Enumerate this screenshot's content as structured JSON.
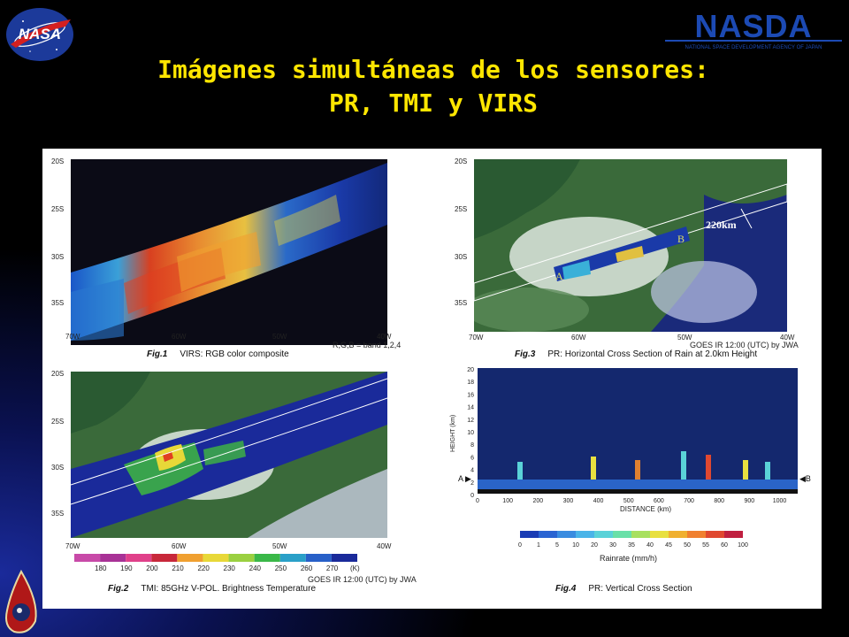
{
  "title": {
    "line1": "Imágenes simultáneas de los sensores:",
    "line2": "PR, TMI y VIRS"
  },
  "logos": {
    "left": "NASA",
    "right": "NASDA",
    "right_sub": "NATIONAL SPACE DEVELOPMENT AGENCY OF JAPAN"
  },
  "fig1": {
    "number": "Fig.1",
    "caption": "VIRS: RGB color composite",
    "note": "R,G,B = band 1,2,4",
    "lat_labels": [
      "20S",
      "25S",
      "30S",
      "35S"
    ],
    "lon_labels": [
      "70W",
      "60W",
      "50W",
      "40W"
    ]
  },
  "fig2": {
    "number": "Fig.2",
    "caption": "TMI: 85GHz V-POL. Brightness Temperature",
    "note": "GOES IR 12:00 (UTC) by JWA",
    "lat_labels": [
      "20S",
      "25S",
      "30S",
      "35S"
    ],
    "lon_labels": [
      "70W",
      "60W",
      "50W",
      "40W"
    ],
    "colorbar_values": [
      "180",
      "190",
      "200",
      "210",
      "220",
      "230",
      "240",
      "250",
      "260",
      "270"
    ],
    "colorbar_unit": "(K)",
    "colorbar_colors": [
      "#c84aa8",
      "#a83296",
      "#e0408a",
      "#c8283a",
      "#f0a030",
      "#e8d838",
      "#9ad040",
      "#3ab848",
      "#2aa0c8",
      "#2860c8",
      "#1a2a9a"
    ]
  },
  "fig3": {
    "number": "Fig.3",
    "caption": "PR: Horizontal Cross Section of Rain at 2.0km Height",
    "note": "GOES IR 12:00 (UTC) by JWA",
    "swath_label": "220km",
    "marker_a": "A",
    "marker_b": "B",
    "lat_labels": [
      "20S",
      "25S",
      "30S",
      "35S"
    ],
    "lon_labels": [
      "70W",
      "60W",
      "50W",
      "40W"
    ]
  },
  "fig4": {
    "number": "Fig.4",
    "caption": "PR: Vertical Cross Section",
    "ylabel": "HEIGHT (km)",
    "xlabel": "DISTANCE (km)",
    "y_ticks": [
      "20",
      "18",
      "16",
      "14",
      "12",
      "10",
      "8",
      "6",
      "4",
      "2",
      "0"
    ],
    "x_ticks": [
      "0",
      "100",
      "200",
      "300",
      "400",
      "500",
      "600",
      "700",
      "800",
      "900",
      "1000"
    ],
    "marker_a": "A",
    "marker_b": "B",
    "colorbar_values": [
      "0",
      "1",
      "5",
      "10",
      "20",
      "30",
      "35",
      "40",
      "45",
      "50",
      "55",
      "60",
      "100"
    ],
    "colorbar_unit": "Rainrate (mm/h)",
    "colorbar_colors": [
      "#1a3cb4",
      "#2a64d2",
      "#3a8ce0",
      "#4ab4e8",
      "#5ad2d8",
      "#6ae0a8",
      "#a8e060",
      "#e8e040",
      "#f0b030",
      "#f08030",
      "#e04830",
      "#c02040"
    ]
  }
}
